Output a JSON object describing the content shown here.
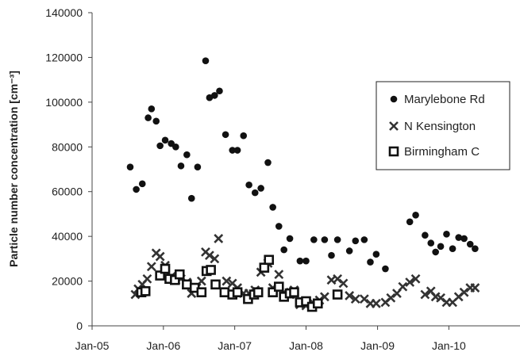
{
  "chart_data": {
    "type": "scatter",
    "title": "",
    "xlabel": "",
    "ylabel": "Particle number concentration [cm⁻³]",
    "xlim": [
      "2005-01-01",
      "2010-12-31"
    ],
    "ylim": [
      0,
      140000
    ],
    "grid": false,
    "legend_position": "top-right",
    "x_ticks": [
      "Jan-05",
      "Jan-06",
      "Jan-07",
      "Jan-08",
      "Jan-09",
      "Jan-10"
    ],
    "y_ticks": [
      "0",
      "20000",
      "40000",
      "60000",
      "80000",
      "100000",
      "120000",
      "140000"
    ],
    "series": [
      {
        "name": "Marylebone Rd",
        "marker": "circle",
        "color": "#111111",
        "points": [
          [
            "2005-07-15",
            71000
          ],
          [
            "2005-08-15",
            61000
          ],
          [
            "2005-09-15",
            63500
          ],
          [
            "2005-10-15",
            93000
          ],
          [
            "2005-11-01",
            97000
          ],
          [
            "2005-11-25",
            91500
          ],
          [
            "2005-12-15",
            80500
          ],
          [
            "2006-01-10",
            83000
          ],
          [
            "2006-02-10",
            81500
          ],
          [
            "2006-03-05",
            80000
          ],
          [
            "2006-04-01",
            71500
          ],
          [
            "2006-05-01",
            76500
          ],
          [
            "2006-05-25",
            57000
          ],
          [
            "2006-06-25",
            71000
          ],
          [
            "2006-08-05",
            118500
          ],
          [
            "2006-08-25",
            102000
          ],
          [
            "2006-09-20",
            103000
          ],
          [
            "2006-10-15",
            105000
          ],
          [
            "2006-11-15",
            85500
          ],
          [
            "2006-12-20",
            78500
          ],
          [
            "2007-01-15",
            78500
          ],
          [
            "2007-02-15",
            85000
          ],
          [
            "2007-03-15",
            63000
          ],
          [
            "2007-04-15",
            59500
          ],
          [
            "2007-05-15",
            61500
          ],
          [
            "2007-06-20",
            73000
          ],
          [
            "2007-07-15",
            53000
          ],
          [
            "2007-08-15",
            44500
          ],
          [
            "2007-09-10",
            34000
          ],
          [
            "2007-10-10",
            39000
          ],
          [
            "2007-12-01",
            29000
          ],
          [
            "2008-01-01",
            29000
          ],
          [
            "2008-02-10",
            38500
          ],
          [
            "2008-04-05",
            38500
          ],
          [
            "2008-05-10",
            31500
          ],
          [
            "2008-06-10",
            38500
          ],
          [
            "2008-08-10",
            33500
          ],
          [
            "2008-09-10",
            38000
          ],
          [
            "2008-10-25",
            38500
          ],
          [
            "2008-11-25",
            28500
          ],
          [
            "2008-12-25",
            32000
          ],
          [
            "2009-02-10",
            25500
          ],
          [
            "2009-06-15",
            46500
          ],
          [
            "2009-07-15",
            49500
          ],
          [
            "2009-09-01",
            40500
          ],
          [
            "2009-10-01",
            37000
          ],
          [
            "2009-10-25",
            33000
          ],
          [
            "2009-11-20",
            35500
          ],
          [
            "2009-12-20",
            41000
          ],
          [
            "2010-01-20",
            34500
          ],
          [
            "2010-02-20",
            39500
          ],
          [
            "2010-03-20",
            39000
          ],
          [
            "2010-04-20",
            36500
          ],
          [
            "2010-05-15",
            34500
          ]
        ]
      },
      {
        "name": "N Kensington",
        "marker": "x",
        "color": "#333333",
        "points": [
          [
            "2005-08-10",
            14000
          ],
          [
            "2005-08-25",
            16500
          ],
          [
            "2005-09-15",
            18500
          ],
          [
            "2005-10-10",
            21000
          ],
          [
            "2005-11-01",
            26500
          ],
          [
            "2005-11-25",
            32500
          ],
          [
            "2005-12-15",
            31000
          ],
          [
            "2006-01-10",
            27000
          ],
          [
            "2006-02-10",
            22000
          ],
          [
            "2006-03-05",
            20500
          ],
          [
            "2006-04-01",
            21000
          ],
          [
            "2006-05-01",
            19500
          ],
          [
            "2006-05-25",
            14500
          ],
          [
            "2006-06-20",
            17000
          ],
          [
            "2006-07-15",
            20000
          ],
          [
            "2006-08-05",
            33000
          ],
          [
            "2006-08-25",
            31500
          ],
          [
            "2006-09-20",
            30000
          ],
          [
            "2006-10-10",
            39000
          ],
          [
            "2006-11-20",
            20000
          ],
          [
            "2006-12-20",
            19000
          ],
          [
            "2007-01-15",
            17000
          ],
          [
            "2007-02-15",
            14500
          ],
          [
            "2007-03-15",
            14500
          ],
          [
            "2007-04-15",
            16000
          ],
          [
            "2007-05-15",
            24000
          ],
          [
            "2007-06-20",
            28000
          ],
          [
            "2007-07-15",
            17000
          ],
          [
            "2007-08-15",
            23000
          ],
          [
            "2007-09-10",
            15000
          ],
          [
            "2007-10-10",
            14000
          ],
          [
            "2007-11-01",
            16000
          ],
          [
            "2007-12-01",
            9500
          ],
          [
            "2008-01-01",
            9000
          ],
          [
            "2008-02-10",
            10000
          ],
          [
            "2008-03-10",
            11500
          ],
          [
            "2008-04-05",
            13000
          ],
          [
            "2008-05-10",
            20500
          ],
          [
            "2008-06-10",
            21000
          ],
          [
            "2008-07-10",
            19000
          ],
          [
            "2008-08-10",
            13500
          ],
          [
            "2008-09-10",
            12000
          ],
          [
            "2008-10-25",
            12000
          ],
          [
            "2008-11-25",
            10000
          ],
          [
            "2008-12-25",
            10000
          ],
          [
            "2009-02-10",
            10500
          ],
          [
            "2009-03-10",
            12500
          ],
          [
            "2009-04-10",
            14500
          ],
          [
            "2009-05-10",
            17500
          ],
          [
            "2009-06-15",
            19500
          ],
          [
            "2009-07-15",
            21000
          ],
          [
            "2009-09-01",
            14000
          ],
          [
            "2009-10-01",
            15500
          ],
          [
            "2009-10-25",
            13000
          ],
          [
            "2009-11-20",
            12500
          ],
          [
            "2009-12-20",
            10500
          ],
          [
            "2010-01-20",
            10500
          ],
          [
            "2010-02-20",
            13000
          ],
          [
            "2010-03-20",
            15000
          ],
          [
            "2010-04-20",
            17000
          ],
          [
            "2010-05-15",
            17000
          ]
        ]
      },
      {
        "name": "Birmingham C",
        "marker": "square",
        "color": "#111111",
        "points": [
          [
            "2005-09-10",
            15000
          ],
          [
            "2005-10-01",
            15500
          ],
          [
            "2005-12-15",
            22500
          ],
          [
            "2006-01-10",
            25500
          ],
          [
            "2006-02-01",
            21000
          ],
          [
            "2006-03-01",
            20500
          ],
          [
            "2006-03-25",
            23000
          ],
          [
            "2006-05-01",
            18500
          ],
          [
            "2006-06-10",
            17000
          ],
          [
            "2006-07-15",
            15000
          ],
          [
            "2006-08-10",
            24500
          ],
          [
            "2006-09-01",
            25000
          ],
          [
            "2006-09-25",
            18500
          ],
          [
            "2006-11-10",
            15000
          ],
          [
            "2006-12-20",
            14000
          ],
          [
            "2007-01-15",
            15000
          ],
          [
            "2007-03-10",
            12000
          ],
          [
            "2007-04-10",
            14000
          ],
          [
            "2007-05-01",
            15000
          ],
          [
            "2007-06-01",
            26000
          ],
          [
            "2007-06-25",
            29500
          ],
          [
            "2007-07-15",
            15000
          ],
          [
            "2007-08-15",
            17500
          ],
          [
            "2007-09-10",
            13000
          ],
          [
            "2007-10-10",
            14500
          ],
          [
            "2007-11-01",
            15000
          ],
          [
            "2007-12-01",
            10500
          ],
          [
            "2008-01-01",
            11000
          ],
          [
            "2008-02-01",
            8500
          ],
          [
            "2008-03-01",
            10000
          ],
          [
            "2008-06-10",
            14000
          ]
        ]
      }
    ]
  }
}
